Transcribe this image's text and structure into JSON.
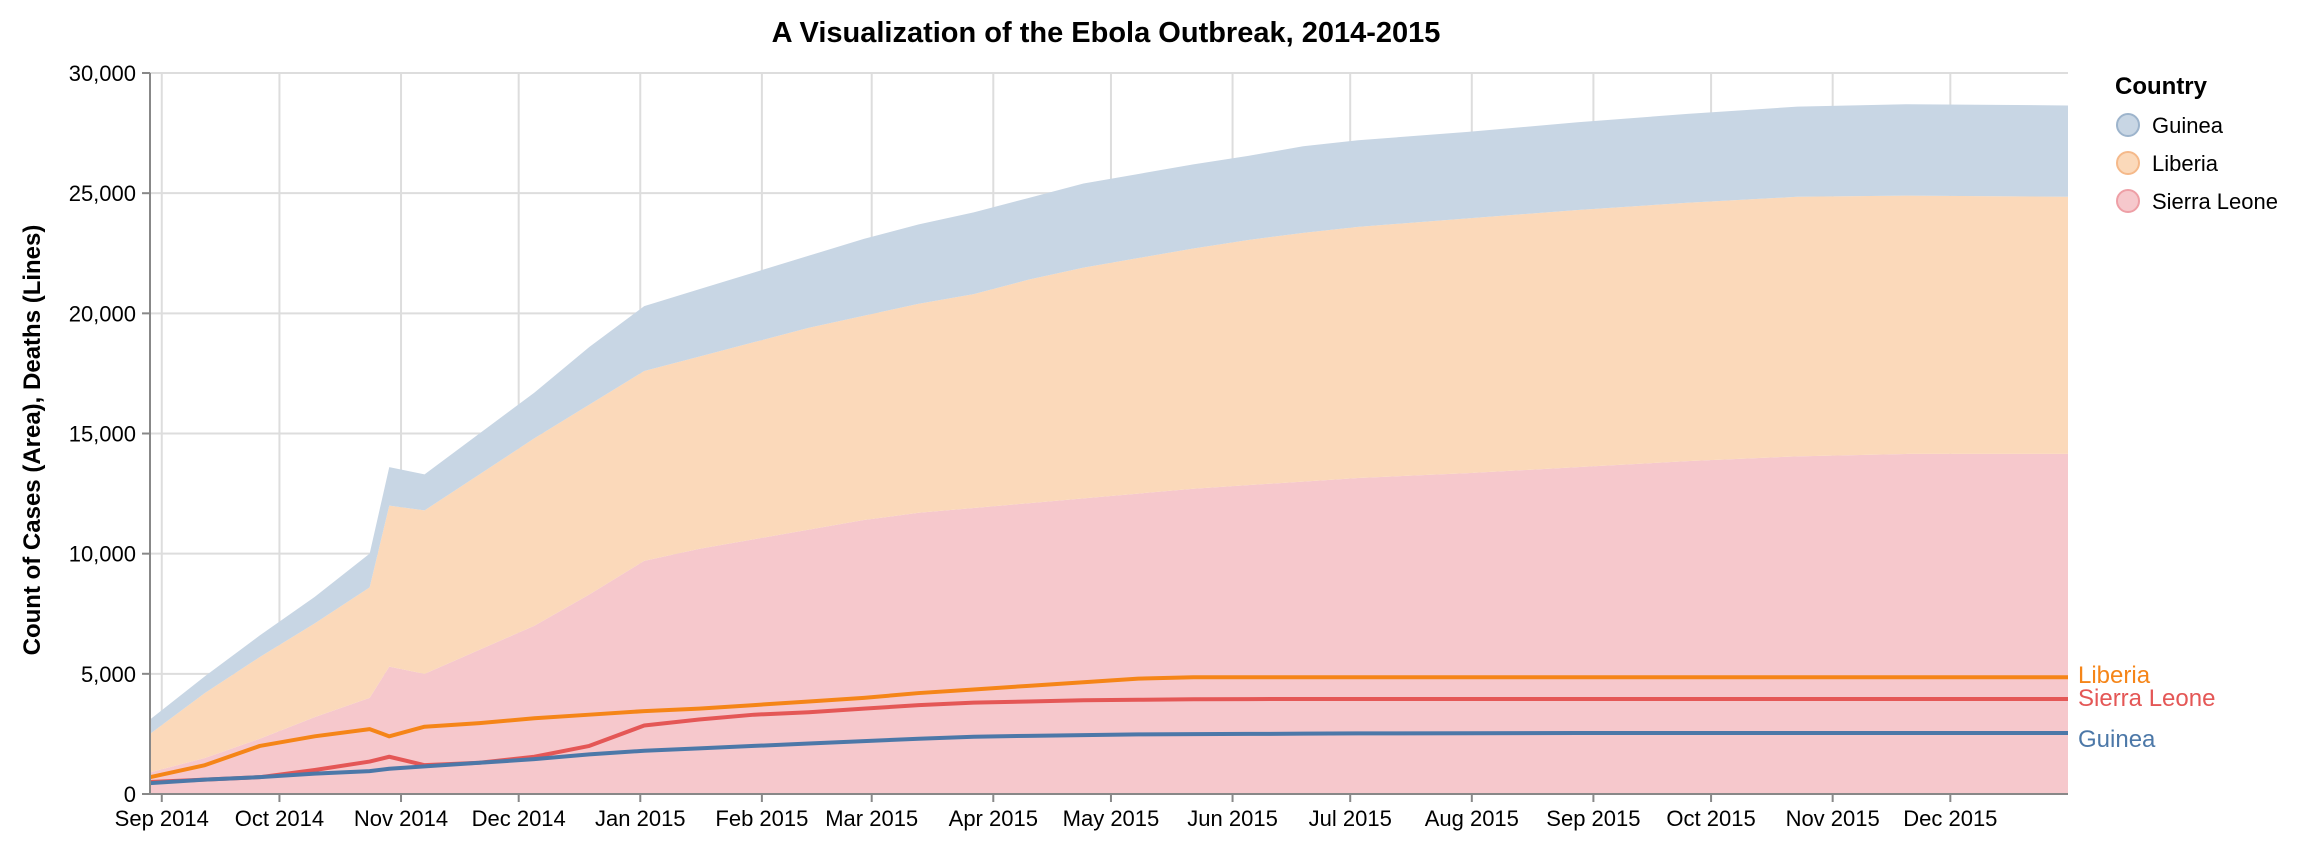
{
  "chart_data": {
    "type": "area",
    "title": "A Visualization of the Ebola Outbreak, 2014-2015",
    "xlabel": "",
    "ylabel": "Count of Cases (Area), Deaths (Lines)",
    "ylim": [
      0,
      30000
    ],
    "xlim": [
      "2014-08-29",
      "2015-12-31"
    ],
    "y_ticks": [
      "0",
      "5,000",
      "10,000",
      "15,000",
      "20,000",
      "25,000",
      "30,000"
    ],
    "y_tick_values": [
      0,
      5000,
      10000,
      15000,
      20000,
      25000,
      30000
    ],
    "x_ticks": [
      {
        "date": "2014-09-01",
        "label": "Sep 2014"
      },
      {
        "date": "2014-10-01",
        "label": "Oct 2014"
      },
      {
        "date": "2014-11-01",
        "label": "Nov 2014"
      },
      {
        "date": "2014-12-01",
        "label": "Dec 2014"
      },
      {
        "date": "2015-01-01",
        "label": "Jan 2015"
      },
      {
        "date": "2015-02-01",
        "label": "Feb 2015"
      },
      {
        "date": "2015-03-01",
        "label": "Mar 2015"
      },
      {
        "date": "2015-04-01",
        "label": "Apr 2015"
      },
      {
        "date": "2015-05-01",
        "label": "May 2015"
      },
      {
        "date": "2015-06-01",
        "label": "Jun 2015"
      },
      {
        "date": "2015-07-01",
        "label": "Jul 2015"
      },
      {
        "date": "2015-08-01",
        "label": "Aug 2015"
      },
      {
        "date": "2015-09-01",
        "label": "Sep 2015"
      },
      {
        "date": "2015-10-01",
        "label": "Oct 2015"
      },
      {
        "date": "2015-11-01",
        "label": "Nov 2015"
      },
      {
        "date": "2015-12-01",
        "label": "Dec 2015"
      }
    ],
    "grid": true,
    "legend": {
      "title": "Country",
      "position": "right",
      "items": [
        {
          "label": "Guinea",
          "fill": "#c8d6e4",
          "stroke": "#9db4cc"
        },
        {
          "label": "Liberia",
          "fill": "#fbd9ba",
          "stroke": "#f5b98a"
        },
        {
          "label": "Sierra Leone",
          "fill": "#f6c8cc",
          "stroke": "#ee9fa6"
        }
      ]
    },
    "x": [
      "2014-08-29",
      "2014-09-12",
      "2014-09-26",
      "2014-10-10",
      "2014-10-24",
      "2014-10-29",
      "2014-11-07",
      "2014-11-21",
      "2014-12-05",
      "2014-12-19",
      "2015-01-02",
      "2015-01-16",
      "2015-01-30",
      "2015-02-13",
      "2015-02-27",
      "2015-03-13",
      "2015-03-27",
      "2015-04-10",
      "2015-04-24",
      "2015-05-08",
      "2015-05-22",
      "2015-06-05",
      "2015-06-19",
      "2015-07-03",
      "2015-07-31",
      "2015-08-28",
      "2015-09-25",
      "2015-10-23",
      "2015-11-20",
      "2015-12-31"
    ],
    "cases_series": [
      {
        "name": "Sierra Leone",
        "fill": "#f6c8cc",
        "values": [
          900,
          1500,
          2300,
          3200,
          4000,
          5300,
          5000,
          6000,
          7000,
          8300,
          9700,
          10200,
          10600,
          11000,
          11400,
          11700,
          11900,
          12100,
          12300,
          12500,
          12700,
          12850,
          13000,
          13150,
          13350,
          13600,
          13850,
          14050,
          14150,
          14150
        ]
      },
      {
        "name": "Liberia",
        "fill": "#fbd9ba",
        "values": [
          1600,
          2700,
          3400,
          3900,
          4600,
          6700,
          6800,
          7300,
          7800,
          7900,
          7900,
          8000,
          8200,
          8400,
          8500,
          8700,
          8900,
          9300,
          9600,
          9800,
          10000,
          10200,
          10350,
          10450,
          10600,
          10700,
          10750,
          10800,
          10750,
          10700
        ]
      },
      {
        "name": "Guinea",
        "fill": "#c8d6e4",
        "values": [
          600,
          700,
          900,
          1100,
          1400,
          1600,
          1500,
          1700,
          1900,
          2400,
          2700,
          2800,
          2900,
          3000,
          3200,
          3300,
          3400,
          3400,
          3500,
          3500,
          3500,
          3500,
          3600,
          3600,
          3600,
          3650,
          3700,
          3750,
          3800,
          3800
        ]
      }
    ],
    "death_series": [
      {
        "name": "Liberia",
        "color": "#f58518",
        "values": [
          700,
          1200,
          2000,
          2400,
          2700,
          2400,
          2800,
          2950,
          3150,
          3300,
          3450,
          3550,
          3700,
          3850,
          4000,
          4200,
          4350,
          4500,
          4650,
          4800,
          4860,
          4860,
          4860,
          4860,
          4860,
          4860,
          4860,
          4860,
          4860,
          4860
        ]
      },
      {
        "name": "Sierra Leone",
        "color": "#e45756",
        "values": [
          500,
          600,
          700,
          1000,
          1350,
          1550,
          1200,
          1300,
          1550,
          2000,
          2850,
          3100,
          3300,
          3400,
          3550,
          3700,
          3800,
          3850,
          3900,
          3920,
          3940,
          3950,
          3955,
          3955,
          3955,
          3955,
          3955,
          3955,
          3955,
          3955
        ]
      },
      {
        "name": "Guinea",
        "color": "#4c78a8",
        "values": [
          450,
          600,
          700,
          850,
          950,
          1050,
          1150,
          1300,
          1450,
          1650,
          1800,
          1900,
          2000,
          2100,
          2200,
          2300,
          2380,
          2420,
          2450,
          2480,
          2490,
          2500,
          2510,
          2520,
          2530,
          2540,
          2536,
          2536,
          2536,
          2536
        ]
      }
    ],
    "end_labels": [
      {
        "text": "Liberia",
        "color": "#f58518",
        "value": 4860
      },
      {
        "text": "Sierra Leone",
        "color": "#e45756",
        "value": 3955
      },
      {
        "text": "Guinea",
        "color": "#4c78a8",
        "value": 2536
      }
    ]
  }
}
